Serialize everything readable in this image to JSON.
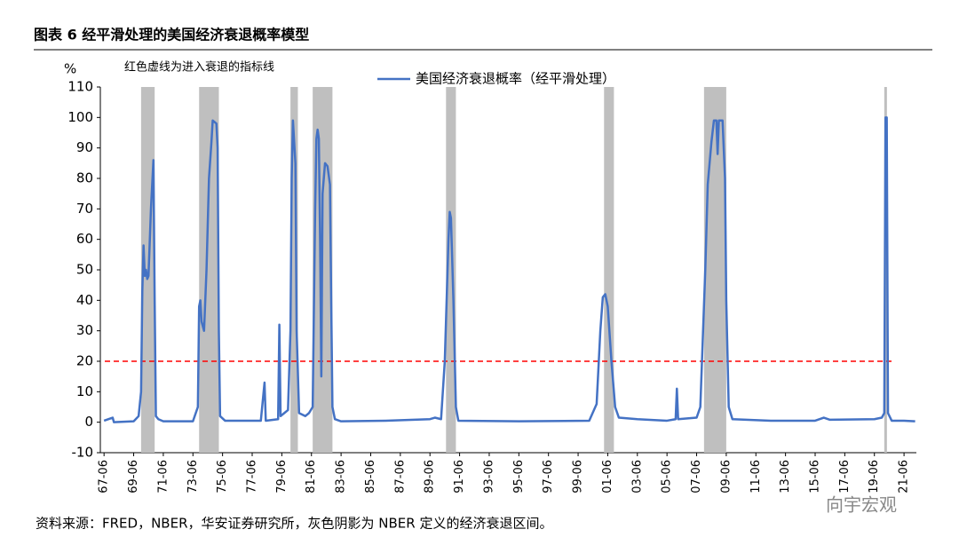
{
  "chart_data": {
    "type": "line",
    "title": "图表 6  经平滑处理的美国经济衰退概率模型",
    "y_label": "%",
    "annotation": "红色虚线为进入衰退的指标线",
    "source": "资料来源：FRED，NBER，华安证券研究所，灰色阴影为 NBER 定义的经济衰退区间。",
    "watermark": "向宇宏观",
    "threshold": 20,
    "threshold_color": "#ff0000",
    "shade_color": "#bfbfbf",
    "shaded_periods": [
      [
        "69-12",
        "70-11"
      ],
      [
        "73-11",
        "75-03"
      ],
      [
        "80-01",
        "80-07"
      ],
      [
        "81-07",
        "82-11"
      ],
      [
        "90-07",
        "91-03"
      ],
      [
        "01-03",
        "01-11"
      ],
      [
        "07-12",
        "09-06"
      ],
      [
        "20-02",
        "20-04"
      ]
    ],
    "xlim": [
      "67-03",
      "22-04"
    ],
    "xticks": [
      "67-06",
      "69-06",
      "71-06",
      "73-06",
      "75-06",
      "77-06",
      "79-06",
      "81-06",
      "83-06",
      "85-06",
      "87-06",
      "89-06",
      "91-06",
      "93-06",
      "95-06",
      "97-06",
      "99-06",
      "01-06",
      "03-06",
      "05-06",
      "07-06",
      "09-06",
      "11-06",
      "13-06",
      "15-06",
      "17-06",
      "19-06",
      "21-06"
    ],
    "ylim": [
      -10,
      110
    ],
    "yticks": [
      -10,
      0,
      10,
      20,
      30,
      40,
      50,
      60,
      70,
      80,
      90,
      100,
      110
    ],
    "x": [
      "67-06",
      "68-01",
      "68-02",
      "69-06",
      "69-10",
      "69-12",
      "70-01",
      "70-02",
      "70-03",
      "70-04",
      "70-05",
      "70-06",
      "70-08",
      "70-10",
      "70-11",
      "70-12",
      "71-02",
      "71-06",
      "73-06",
      "73-10",
      "73-11",
      "73-12",
      "74-01",
      "74-03",
      "74-05",
      "74-07",
      "74-09",
      "74-10",
      "75-01",
      "75-02",
      "75-03",
      "75-04",
      "75-08",
      "78-01",
      "78-04",
      "78-05",
      "79-03",
      "79-04",
      "79-05",
      "79-08",
      "79-11",
      "80-01",
      "80-02",
      "80-03",
      "80-05",
      "80-06",
      "80-08",
      "81-01",
      "81-04",
      "81-07",
      "81-09",
      "81-10",
      "81-11",
      "81-12",
      "82-01",
      "82-02",
      "82-03",
      "82-05",
      "82-07",
      "82-09",
      "82-10",
      "82-11",
      "83-01",
      "83-06",
      "86-06",
      "89-06",
      "89-10",
      "90-03",
      "90-06",
      "90-09",
      "90-10",
      "90-11",
      "91-01",
      "91-03",
      "91-05",
      "95-06",
      "00-03",
      "00-09",
      "00-12",
      "01-02",
      "01-04",
      "01-06",
      "01-09",
      "01-12",
      "02-03",
      "03-06",
      "05-06",
      "06-01",
      "06-02",
      "06-03",
      "07-06",
      "07-09",
      "08-01",
      "08-03",
      "08-06",
      "08-08",
      "08-10",
      "08-11",
      "08-12",
      "09-03",
      "09-05",
      "09-06",
      "09-08",
      "09-11",
      "12-06",
      "15-06",
      "16-01",
      "16-06",
      "19-06",
      "19-12",
      "20-02",
      "20-03",
      "20-04",
      "20-05",
      "20-08",
      "21-06",
      "22-03"
    ],
    "series": [
      {
        "name": "美国经济衰退概率（经平滑处理）",
        "color": "#4472c4",
        "values": [
          0.5,
          1.5,
          0,
          0.3,
          2,
          10,
          43,
          58,
          48,
          50,
          47,
          48,
          70,
          86,
          40,
          2,
          1,
          0.3,
          0.3,
          5,
          38,
          40,
          33,
          30,
          50,
          80,
          92,
          99,
          98,
          90,
          30,
          2,
          0.5,
          0.5,
          13,
          0.5,
          1,
          32,
          2,
          3,
          4,
          30,
          80,
          99,
          85,
          30,
          3,
          2,
          3,
          5,
          70,
          93,
          96,
          93,
          60,
          15,
          75,
          85,
          84,
          78,
          40,
          5,
          1,
          0.3,
          0.5,
          1,
          1.5,
          1,
          20,
          60,
          69,
          67,
          40,
          5,
          0.5,
          0.3,
          0.5,
          6,
          30,
          41,
          42,
          38,
          20,
          5,
          1.5,
          1,
          0.5,
          1,
          11,
          1,
          1.5,
          5,
          50,
          78,
          92,
          99,
          99,
          88,
          99,
          99,
          80,
          40,
          5,
          1,
          0.5,
          0.5,
          1.5,
          0.8,
          1,
          1.5,
          3,
          100,
          100,
          3,
          0.5,
          0.5,
          0.3
        ]
      }
    ]
  }
}
